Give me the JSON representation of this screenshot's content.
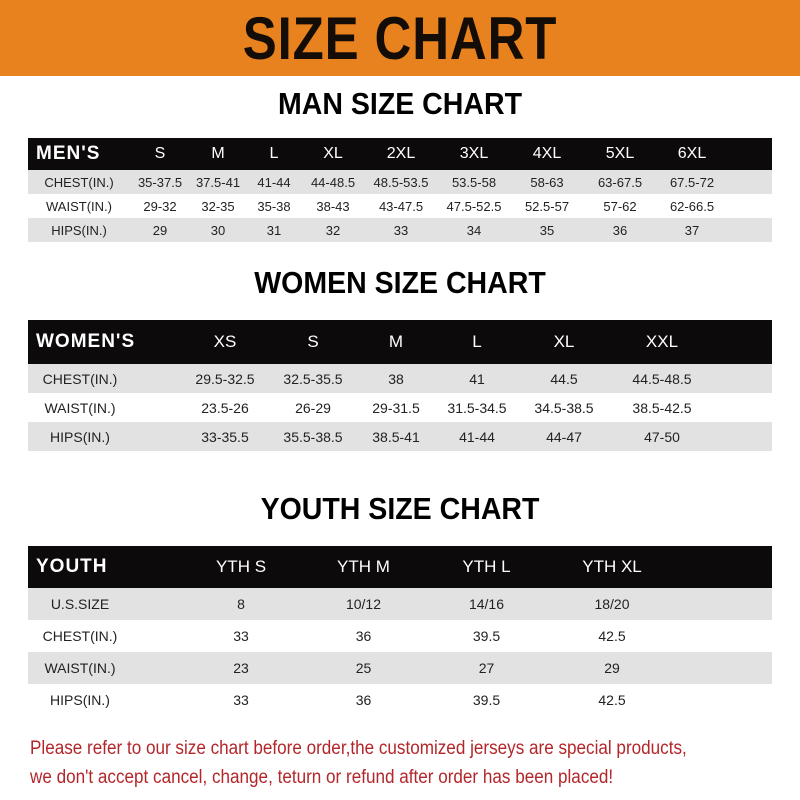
{
  "banner_title": "SIZE CHART",
  "men": {
    "title": "MAN SIZE CHART",
    "header": [
      "MEN'S",
      "S",
      "M",
      "L",
      "XL",
      "2XL",
      "3XL",
      "4XL",
      "5XL",
      "6XL"
    ],
    "rows": [
      [
        "CHEST(IN.)",
        "35-37.5",
        "37.5-41",
        "41-44",
        "44-48.5",
        "48.5-53.5",
        "53.5-58",
        "58-63",
        "63-67.5",
        "67.5-72"
      ],
      [
        "WAIST(IN.)",
        "29-32",
        "32-35",
        "35-38",
        "38-43",
        "43-47.5",
        "47.5-52.5",
        "52.5-57",
        "57-62",
        "62-66.5"
      ],
      [
        "HIPS(IN.)",
        "29",
        "30",
        "31",
        "32",
        "33",
        "34",
        "35",
        "36",
        "37"
      ]
    ]
  },
  "women": {
    "title": "WOMEN SIZE CHART",
    "header": [
      "WOMEN'S",
      "XS",
      "S",
      "M",
      "L",
      "XL",
      "XXL"
    ],
    "rows": [
      [
        "CHEST(IN.)",
        "29.5-32.5",
        "32.5-35.5",
        "38",
        "41",
        "44.5",
        "44.5-48.5"
      ],
      [
        "WAIST(IN.)",
        "23.5-26",
        "26-29",
        "29-31.5",
        "31.5-34.5",
        "34.5-38.5",
        "38.5-42.5"
      ],
      [
        "HIPS(IN.)",
        "33-35.5",
        "35.5-38.5",
        "38.5-41",
        "41-44",
        "44-47",
        "47-50"
      ]
    ]
  },
  "youth": {
    "title": "YOUTH SIZE CHART",
    "header": [
      "YOUTH",
      "YTH S",
      "YTH M",
      "YTH L",
      "YTH XL"
    ],
    "rows": [
      [
        "U.S.SIZE",
        "8",
        "10/12",
        "14/16",
        "18/20"
      ],
      [
        "CHEST(IN.)",
        "33",
        "36",
        "39.5",
        "42.5"
      ],
      [
        "WAIST(IN.)",
        "23",
        "25",
        "27",
        "29"
      ],
      [
        "HIPS(IN.)",
        "33",
        "36",
        "39.5",
        "42.5"
      ]
    ]
  },
  "footer": {
    "line1": "Please refer to our size chart before order,the customized jerseys are special products,",
    "line2": "we don't accept cancel, change, teturn or refund after order has been placed!"
  },
  "colors": {
    "banner": "#e8821e",
    "header_row": "#0c0a0a",
    "stripe": "#e2e2e2",
    "notice": "#b3262a"
  }
}
